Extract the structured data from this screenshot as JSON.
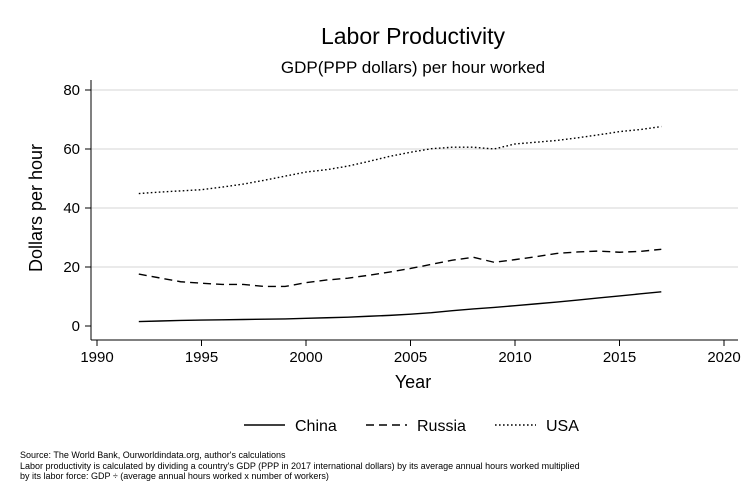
{
  "chart_data": {
    "type": "line",
    "title": "Labor Productivity",
    "subtitle": "GDP(PPP dollars) per hour worked",
    "xlabel": "Year",
    "ylabel": "Dollars per hour",
    "xlim": [
      1990,
      2020
    ],
    "ylim": [
      0,
      80
    ],
    "xticks": [
      1990,
      1995,
      2000,
      2005,
      2010,
      2015,
      2020
    ],
    "yticks": [
      0,
      20,
      40,
      60,
      80
    ],
    "grid": "horizontal",
    "legend_position": "bottom",
    "x": [
      1992,
      1993,
      1994,
      1995,
      1996,
      1997,
      1998,
      1999,
      2000,
      2001,
      2002,
      2003,
      2004,
      2005,
      2006,
      2007,
      2008,
      2009,
      2010,
      2011,
      2012,
      2013,
      2014,
      2015,
      2016,
      2017
    ],
    "series": [
      {
        "name": "China",
        "style": "solid",
        "values": [
          1.5,
          1.7,
          1.9,
          2.0,
          2.1,
          2.2,
          2.3,
          2.4,
          2.6,
          2.8,
          3.0,
          3.3,
          3.6,
          4.0,
          4.5,
          5.2,
          5.8,
          6.3,
          6.9,
          7.5,
          8.1,
          8.8,
          9.5,
          10.2,
          10.9,
          11.6
        ]
      },
      {
        "name": "Russia",
        "style": "dashed",
        "values": [
          17.6,
          16.3,
          15.0,
          14.5,
          14.1,
          14.1,
          13.4,
          13.4,
          14.7,
          15.6,
          16.2,
          17.2,
          18.3,
          19.5,
          20.9,
          22.3,
          23.3,
          21.6,
          22.5,
          23.5,
          24.6,
          25.1,
          25.4,
          25.0,
          25.3,
          26.0
        ]
      },
      {
        "name": "USA",
        "style": "dotted",
        "values": [
          44.9,
          45.4,
          45.8,
          46.2,
          47.1,
          48.1,
          49.4,
          50.8,
          52.2,
          53.0,
          54.2,
          55.8,
          57.5,
          58.9,
          60.1,
          60.6,
          60.6,
          60.0,
          61.7,
          62.3,
          62.9,
          63.8,
          64.8,
          65.9,
          66.6,
          67.6
        ]
      }
    ]
  },
  "footnote": {
    "source": "Source: The World Bank, Ourworldindata.org, author's calculations",
    "note_line1": "Labor productivity is calculated by dividing a country's GDP (PPP in 2017 international dollars) by its average annual hours worked multiplied",
    "note_line2": "by its labor force: GDP ÷ (average annual hours worked x number of workers)"
  },
  "colors": {
    "line": "#000000",
    "grid": "#d4d4d4",
    "background": "#ffffff"
  }
}
